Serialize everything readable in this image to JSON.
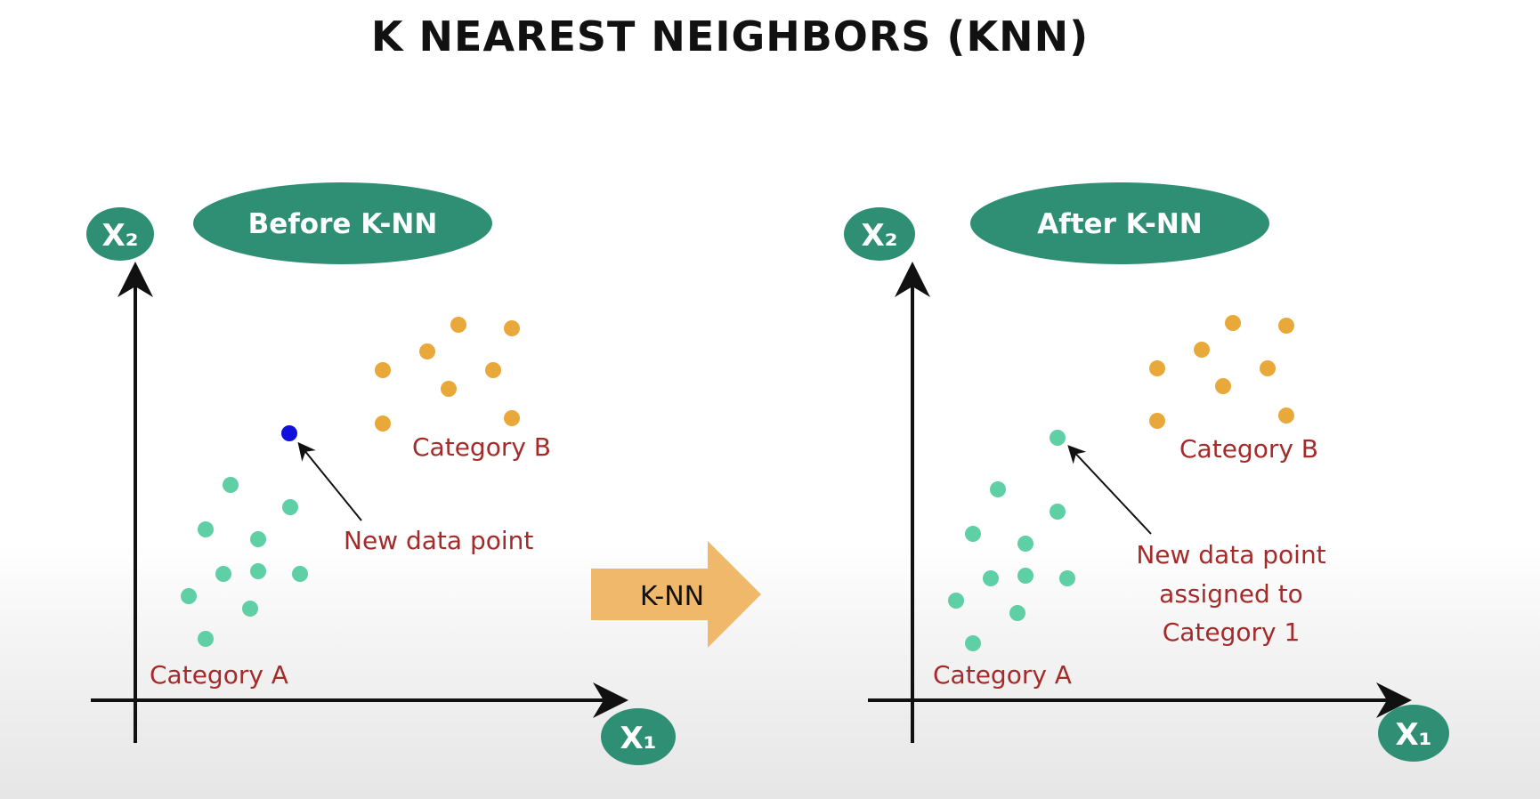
{
  "title": "K NEAREST NEIGHBORS (KNN)",
  "colors": {
    "category_a": "#5fcfa6",
    "category_b": "#e9a93a",
    "new_point": "#1010dd",
    "badge": "#2f8f75",
    "label": "#a52a2a",
    "transition_arrow": "#f0b86a"
  },
  "before_panel": {
    "pill_label": "Before K-NN",
    "y_axis_label": "X₂",
    "x_axis_label": "X₁",
    "category_b_label": "Category B",
    "category_a_label": "Category A",
    "new_point_label": "New data point"
  },
  "transition": {
    "label": "K-NN"
  },
  "after_panel": {
    "pill_label": "After K-NN",
    "y_axis_label": "X₂",
    "x_axis_label": "X₁",
    "category_b_label": "Category B",
    "category_a_label": "Category A",
    "new_point_label_lines": [
      "New data point",
      "assigned to",
      "Category 1"
    ]
  }
}
